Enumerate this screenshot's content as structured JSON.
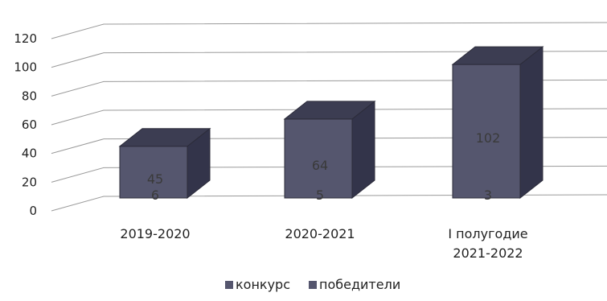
{
  "chart_data": {
    "type": "bar",
    "categories": [
      "2019-2020",
      "2020-2021",
      "I полугодие 2021-2022"
    ],
    "category_lines": [
      [
        "2019-2020"
      ],
      [
        "2020-2021"
      ],
      [
        "I полугодие",
        "2021-2022"
      ]
    ],
    "series": [
      {
        "name": "конкурс",
        "values": [
          45,
          64,
          102
        ],
        "color": "#55566e"
      },
      {
        "name": "победители",
        "values": [
          6,
          5,
          3
        ],
        "color": "#55566e"
      }
    ],
    "ylim": [
      0,
      120
    ],
    "yticks": [
      "0",
      "20",
      "40",
      "60",
      "80",
      "100",
      "120"
    ],
    "grid": true,
    "three_d": true,
    "legend_position": "bottom"
  }
}
